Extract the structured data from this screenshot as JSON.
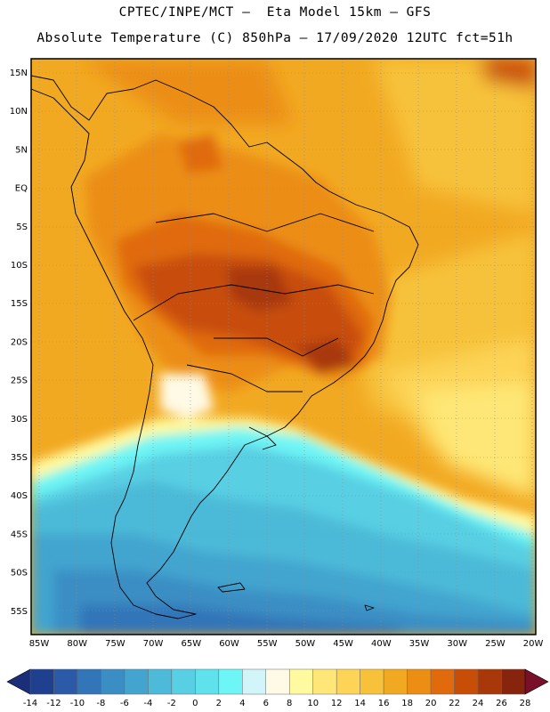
{
  "header": {
    "line1": "CPTEC/INPE/MCT –  Eta Model 15km – GFS",
    "line2": "Absolute Temperature (C) 850hPa – 17/09/2020 12UTC fct=51h"
  },
  "map": {
    "lat_labels": [
      "15N",
      "10N",
      "5N",
      "EQ",
      "5S",
      "10S",
      "15S",
      "20S",
      "25S",
      "30S",
      "35S",
      "40S",
      "45S",
      "50S",
      "55S"
    ],
    "lon_labels": [
      "85W",
      "80W",
      "75W",
      "70W",
      "65W",
      "60W",
      "55W",
      "50W",
      "45W",
      "40W",
      "35W",
      "30W",
      "25W",
      "20W"
    ],
    "lat_range": [
      -58,
      16.5
    ],
    "lon_range": [
      -86,
      -19.5
    ]
  },
  "colorbar": {
    "labels": [
      "-14",
      "-12",
      "-10",
      "-8",
      "-6",
      "-4",
      "-2",
      "0",
      "2",
      "4",
      "6",
      "8",
      "10",
      "12",
      "14",
      "16",
      "18",
      "20",
      "22",
      "24",
      "26",
      "28"
    ],
    "colors": [
      "#1f3f8f",
      "#2a5aa8",
      "#3275b8",
      "#3b8ec4",
      "#43a5cf",
      "#4cbad8",
      "#58cfe3",
      "#5fe2ec",
      "#6ef5f5",
      "#d2f5fa",
      "#fffae6",
      "#fffaa0",
      "#fee776",
      "#fdd456",
      "#f7c23a",
      "#f2a922",
      "#ec8e14",
      "#e06a0c",
      "#c84e08",
      "#a8380a",
      "#86240e"
    ],
    "min_color": "#1a2e7a",
    "max_color": "#7a0f2a"
  }
}
